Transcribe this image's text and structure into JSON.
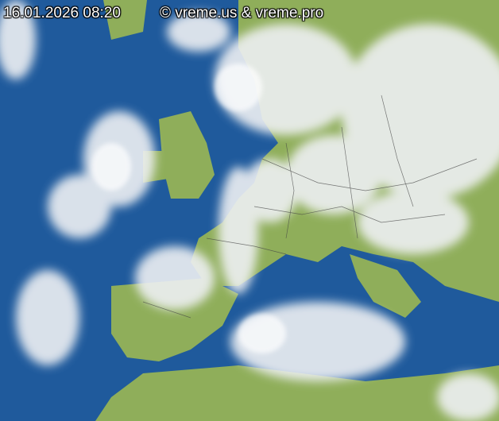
{
  "timestamp": "16.01.2026 08:20",
  "copyright": "© vreme.us & vreme.pro",
  "colors": {
    "sea": "#1f5a9c",
    "land": "#8fae5a",
    "cloud": "#e8eaee",
    "border": "#444444"
  }
}
